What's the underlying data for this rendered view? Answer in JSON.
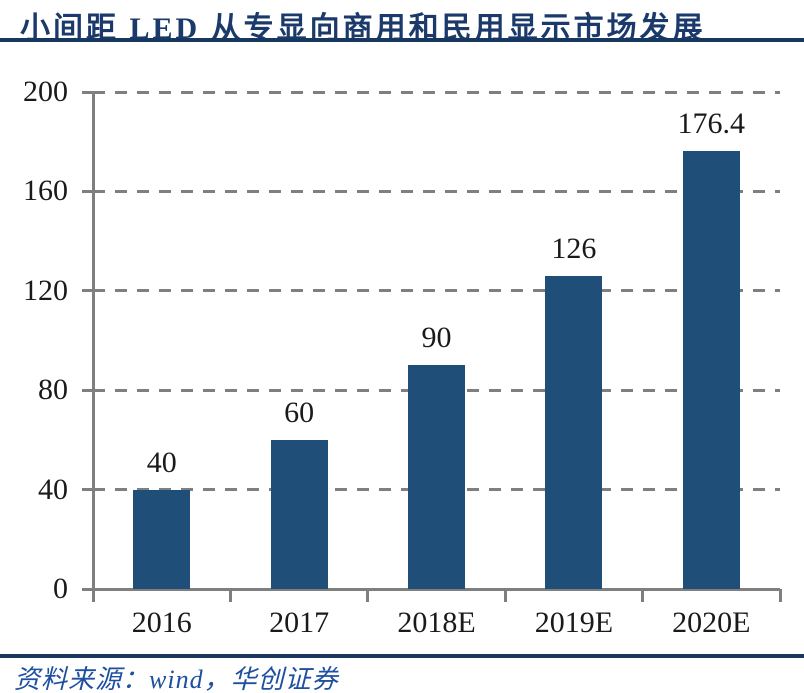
{
  "header": {
    "title": "小间距 LED 从专显向商用和民用显示市场发展"
  },
  "footer": {
    "source": "资料来源：wind，华创证券"
  },
  "colors": {
    "bar": "#1f4e79",
    "title_text": "#1b3a6b",
    "rule": "#17375e",
    "axis": "#7f7f7f",
    "grid": "#7f7f7f",
    "tick_label": "#1a1a1a",
    "source_text": "#1e4fa1"
  },
  "chart_data": {
    "type": "bar",
    "title": "小间距 LED 从专显向商用和民用显示市场发展",
    "categories": [
      "2016",
      "2017",
      "2018E",
      "2019E",
      "2020E"
    ],
    "values": [
      40,
      60,
      90,
      126,
      176.4
    ],
    "value_labels": [
      "40",
      "60",
      "90",
      "126",
      "176.4"
    ],
    "xlabel": "",
    "ylabel": "",
    "ylim": [
      0,
      200
    ],
    "yticks": [
      0,
      40,
      80,
      120,
      160,
      200
    ],
    "grid": "horizontal-dashed",
    "legend": "none",
    "source": "资料来源：wind，华创证券"
  }
}
